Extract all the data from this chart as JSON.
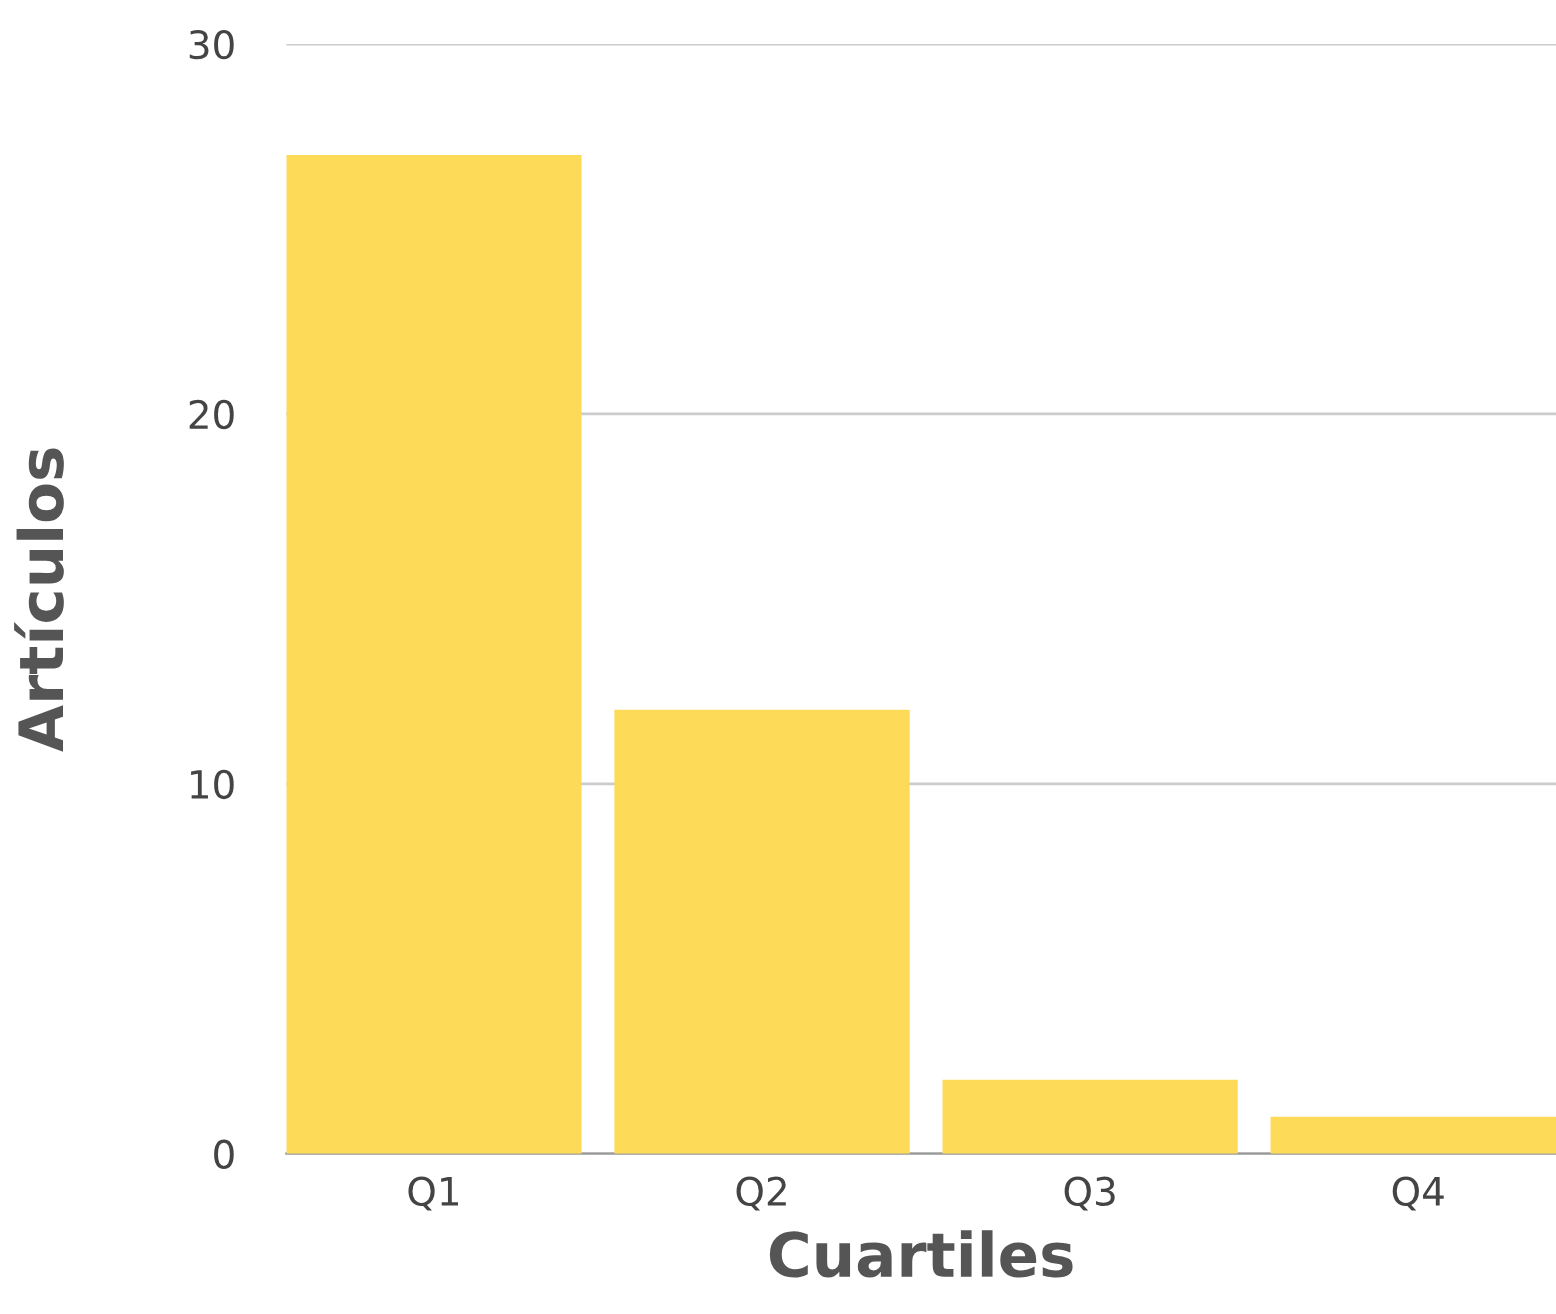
{
  "chart_data": {
    "type": "bar",
    "xlabel": "Cuartiles",
    "ylabel": "Artículos",
    "categories": [
      "Q1",
      "Q2",
      "Q3",
      "Q4"
    ],
    "values": [
      27,
      12,
      2,
      1
    ],
    "color": "#fddb59",
    "ylim": [
      0,
      30
    ],
    "yticks": [
      0,
      10,
      20,
      30
    ],
    "grid": "y"
  }
}
